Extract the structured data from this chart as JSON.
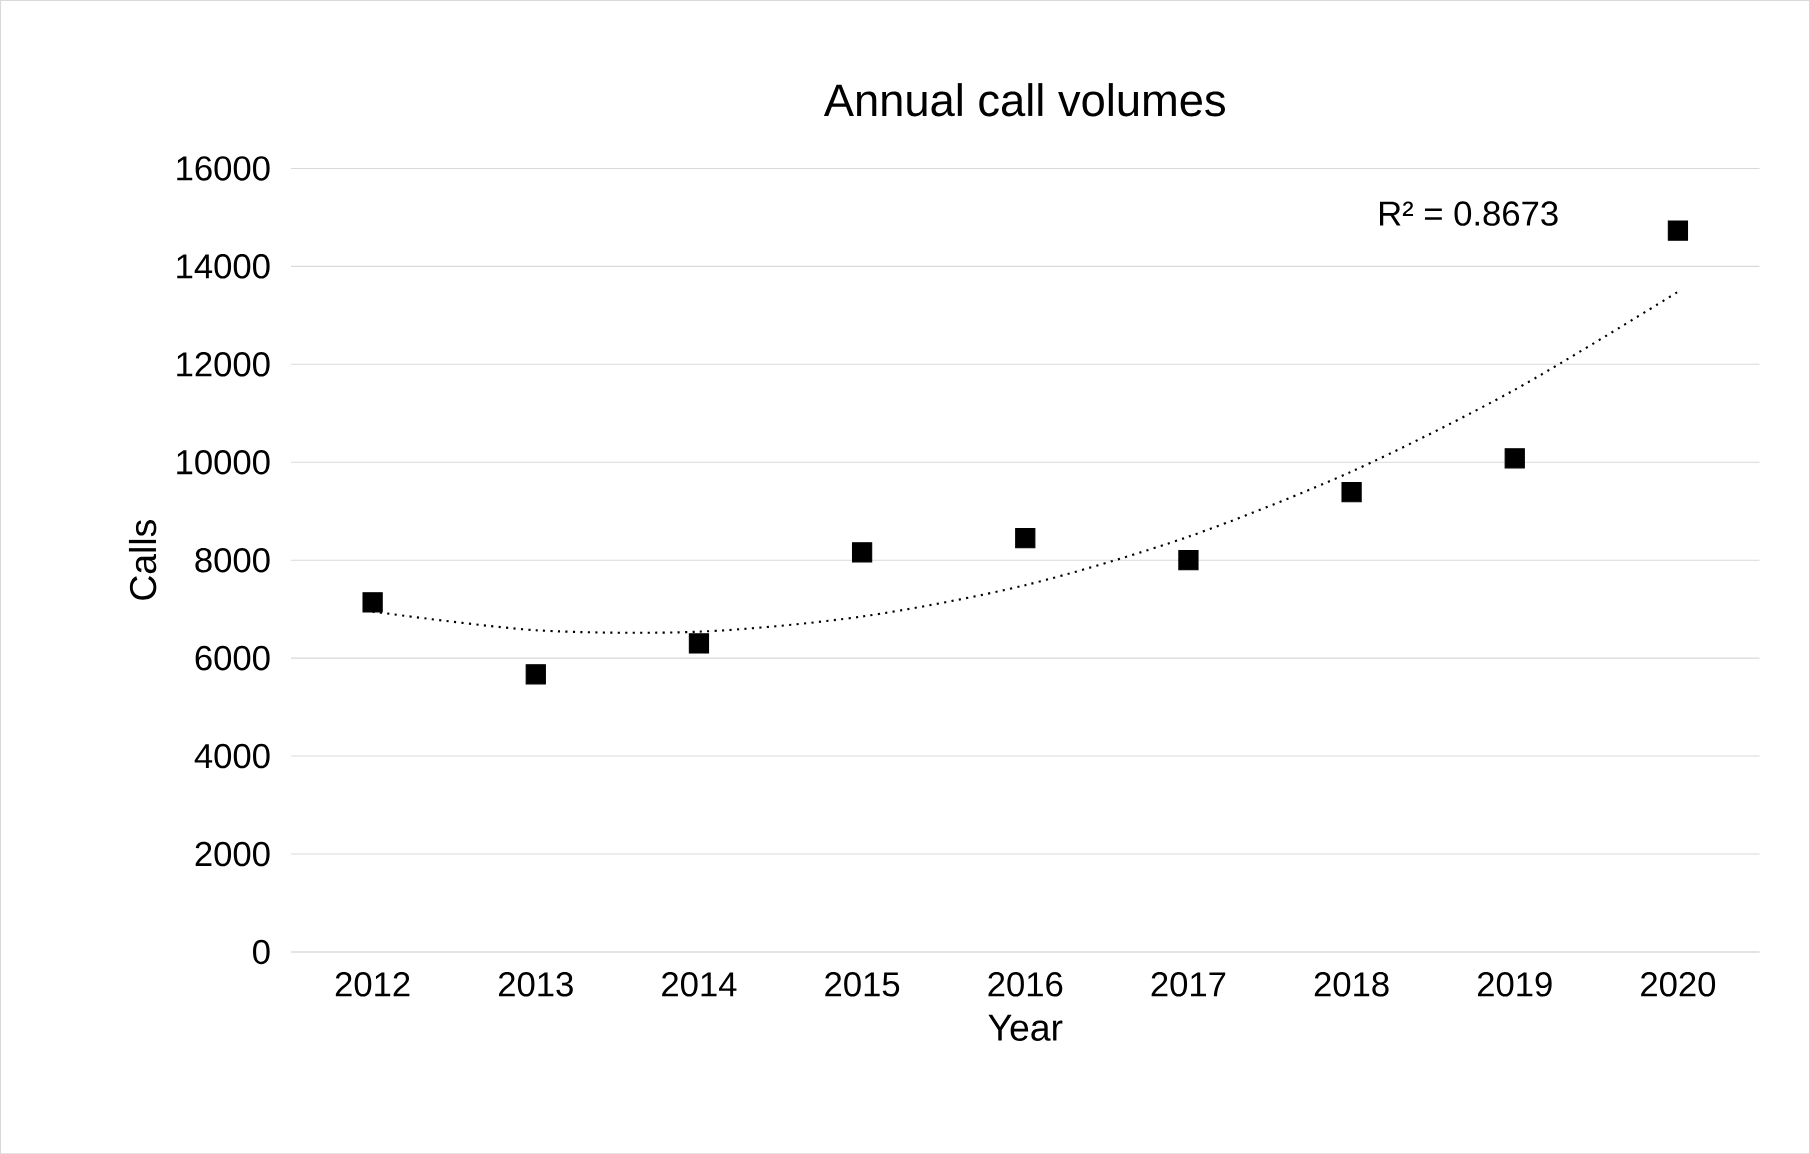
{
  "chart_data": {
    "type": "scatter",
    "title": "Annual call volumes",
    "xlabel": "Year",
    "ylabel": "Calls",
    "categories": [
      "2012",
      "2013",
      "2014",
      "2015",
      "2016",
      "2017",
      "2018",
      "2019",
      "2020"
    ],
    "series": [
      {
        "color": "#000000",
        "marker": "square",
        "values": [
          7140,
          5670,
          6300,
          8160,
          8450,
          8000,
          9390,
          10080,
          14730
        ]
      },
      {
        "type": "line",
        "color": "#000000",
        "marker": "none",
        "line_style": "dotted",
        "values": [
          6950,
          6570,
          6540,
          6850,
          7490,
          8480,
          9810,
          11480,
          13480
        ]
      }
    ],
    "ylim": [
      0,
      16000
    ],
    "yticks": [
      0,
      2000,
      4000,
      6000,
      8000,
      10000,
      12000,
      14000,
      16000
    ],
    "grid": "y",
    "annotations": [
      "R² = 0.8673"
    ]
  }
}
